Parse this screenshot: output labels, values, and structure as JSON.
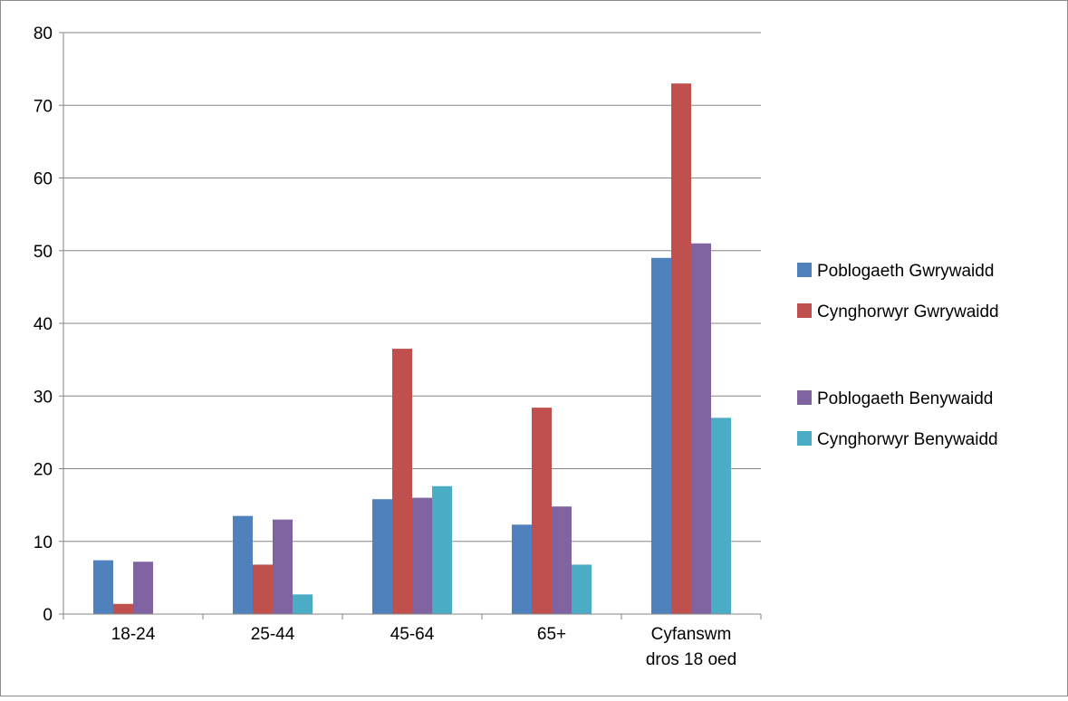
{
  "chart_data": {
    "type": "bar",
    "title": "",
    "xlabel": "",
    "ylabel": "",
    "categories": [
      [
        "18-24"
      ],
      [
        "25-44"
      ],
      [
        "45-64"
      ],
      [
        "65+"
      ],
      [
        "Cyfanswm",
        "dros 18 oed"
      ]
    ],
    "series": [
      {
        "name": "Poblogaeth Gwrywaidd",
        "color": "#4f81bd",
        "values": [
          7.4,
          13.5,
          15.8,
          12.3,
          49
        ]
      },
      {
        "name": "Cynghorwyr Gwrywaidd",
        "color": "#c0504d",
        "values": [
          1.4,
          6.8,
          36.5,
          28.4,
          73
        ]
      },
      {
        "name": "Poblogaeth Benywaidd",
        "color": "#8064a2",
        "values": [
          7.2,
          13,
          16,
          14.8,
          51
        ]
      },
      {
        "name": "Cynghorwyr Benywaidd",
        "color": "#4bacc6",
        "values": [
          0,
          2.7,
          17.6,
          6.8,
          27
        ]
      }
    ],
    "ylim": [
      0,
      80
    ],
    "yticks": [
      0,
      10,
      20,
      30,
      40,
      50,
      60,
      70,
      80
    ],
    "grid": true,
    "legend": "right"
  }
}
